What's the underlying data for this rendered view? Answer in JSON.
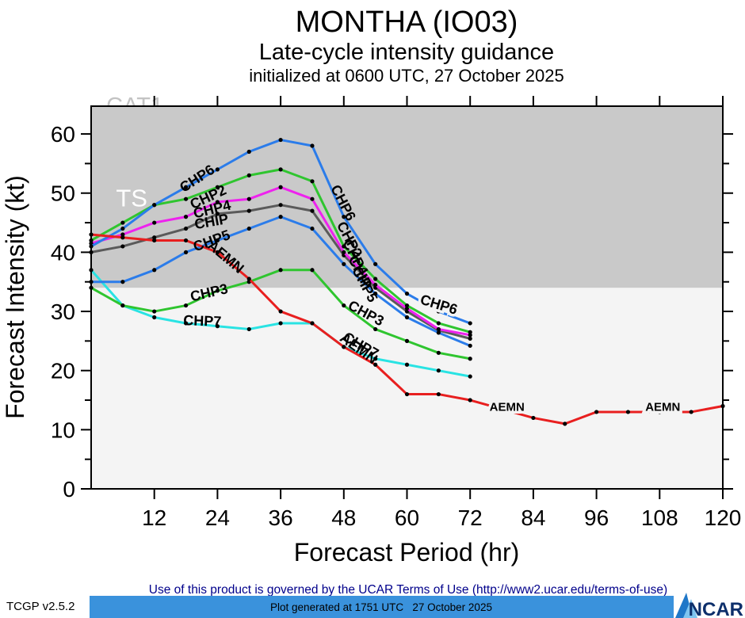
{
  "title": "MONTHA (IO03)",
  "subtitle": "Late-cycle intensity guidance",
  "init_line": "initialized at 0600 UTC, 27 October 2025",
  "footer": {
    "terms": "Use of this product is governed by the UCAR Terms of Use (http://www2.ucar.edu/terms-of-use)",
    "version": "TCGP v2.5.2",
    "generated": "Plot generated at 1751 UTC   27 October 2025",
    "logo_text": "NCAR",
    "terms_color": "#00008b",
    "bar_color": "#3a92dc",
    "logo_navy": "#0d2f6b"
  },
  "chart_data": {
    "type": "line",
    "title": "MONTHA (IO03) — Late-cycle intensity guidance",
    "xlabel": "Forecast Period (hr)",
    "ylabel": "Forecast Intensity (kt)",
    "xlim": [
      0,
      120
    ],
    "ylim": [
      0,
      64.7
    ],
    "xticks": [
      12,
      24,
      36,
      48,
      60,
      72,
      84,
      96,
      108,
      120
    ],
    "yticks": [
      0,
      10,
      20,
      30,
      40,
      50,
      60
    ],
    "yticks_minor": [
      5,
      15,
      25,
      35,
      45,
      55
    ],
    "grid": false,
    "legend_position": "inline-labels",
    "bands": [
      {
        "name": "below-TS",
        "from": 0,
        "to": 34,
        "color": "#f4f4f4"
      },
      {
        "name": "TS",
        "from": 34,
        "to": 64.7,
        "color": "#c9c9c9"
      }
    ],
    "band_labels": [
      {
        "text": "CAT1",
        "t": 8.3,
        "kt": 64.85,
        "color": "#c3c3c3",
        "size": 29,
        "behind_bands": true
      },
      {
        "text": "TS",
        "t": 7.7,
        "kt": 49.2,
        "color": "#ffffff",
        "size": 31,
        "behind_bands": false
      }
    ],
    "series": [
      {
        "name": "CHP7",
        "color": "#29e3e3",
        "x": [
          0,
          6,
          12,
          18,
          24,
          30,
          36,
          42,
          48,
          54,
          60,
          66,
          72
        ],
        "values": [
          37,
          31,
          29,
          28,
          27.5,
          27,
          28,
          28,
          24,
          22,
          21,
          20,
          19
        ]
      },
      {
        "name": "CHP3",
        "color": "#2fc52f",
        "x": [
          0,
          6,
          12,
          18,
          24,
          30,
          36,
          42,
          48,
          54,
          60,
          66,
          72
        ],
        "values": [
          34,
          31,
          30,
          31,
          33.5,
          35,
          37,
          37,
          31,
          27,
          25,
          23,
          22
        ]
      },
      {
        "name": "CHIP",
        "color": "#5a5a5a",
        "x": [
          0,
          6,
          12,
          18,
          24,
          30,
          36,
          42,
          48,
          54,
          60,
          66,
          72
        ],
        "values": [
          40,
          41,
          42.5,
          44,
          46.5,
          47,
          48,
          47,
          39.5,
          34,
          30,
          26.8,
          25.4
        ]
      },
      {
        "name": "CHP4",
        "color": "#ee22ee",
        "x": [
          0,
          6,
          12,
          18,
          24,
          30,
          36,
          42,
          48,
          54,
          60,
          66,
          72
        ],
        "values": [
          41.5,
          43,
          45,
          46,
          48.5,
          49,
          51,
          49,
          40,
          34.5,
          30.5,
          27,
          26
        ]
      },
      {
        "name": "CHP2",
        "color": "#2fc52f",
        "x": [
          0,
          6,
          12,
          18,
          24,
          30,
          36,
          42,
          48,
          54,
          60,
          66,
          72
        ],
        "values": [
          42,
          45,
          48,
          49,
          51,
          53,
          54,
          52,
          41,
          35.5,
          31,
          28,
          26.5
        ]
      },
      {
        "name": "CHP5",
        "color": "#2b7cea",
        "x": [
          0,
          6,
          12,
          18,
          24,
          30,
          36,
          42,
          48,
          54,
          60,
          66,
          72
        ],
        "values": [
          35,
          35,
          37,
          40,
          42,
          44,
          46,
          44,
          38,
          33,
          29,
          26.4,
          24.2
        ]
      },
      {
        "name": "CHP6",
        "color": "#2b7cea",
        "x": [
          0,
          6,
          12,
          18,
          24,
          30,
          36,
          42,
          48,
          54,
          60,
          66,
          72
        ],
        "values": [
          41,
          44,
          48,
          51,
          54,
          57,
          59,
          58,
          46,
          38,
          33,
          30,
          28
        ]
      },
      {
        "name": "AEMN",
        "color": "#e81f1f",
        "x": [
          0,
          6,
          12,
          18,
          24,
          30,
          36,
          42,
          48,
          54,
          60,
          66,
          72,
          78,
          84,
          90,
          96,
          102,
          108,
          114,
          120
        ],
        "values": [
          43,
          42.5,
          42,
          42,
          40,
          35.5,
          30,
          28,
          24,
          21,
          16,
          16,
          15,
          13.5,
          12,
          11,
          13,
          13,
          13,
          13,
          14
        ]
      }
    ],
    "annotations": [
      {
        "text": "CHP6",
        "t": 20.6,
        "kt": 51.8,
        "rot": -33,
        "size": 18,
        "halo": false
      },
      {
        "text": "CHP2",
        "t": 22.6,
        "kt": 48.6,
        "rot": -25,
        "size": 18,
        "halo": false
      },
      {
        "text": "CHP4",
        "t": 23.2,
        "kt": 46.5,
        "rot": -14,
        "size": 18,
        "halo": false
      },
      {
        "text": "CHIP",
        "t": 23.0,
        "kt": 44.4,
        "rot": -10,
        "size": 18,
        "halo": false
      },
      {
        "text": "CHP5",
        "t": 23.2,
        "kt": 41.2,
        "rot": -20,
        "size": 18,
        "halo": false
      },
      {
        "text": "AEMN",
        "t": 25.0,
        "kt": 38.6,
        "rot": 40,
        "size": 18,
        "halo": false
      },
      {
        "text": "CHP3",
        "t": 22.6,
        "kt": 32.4,
        "rot": -13,
        "size": 18,
        "halo": false
      },
      {
        "text": "CHP7",
        "t": 21.1,
        "kt": 27.6,
        "rot": 2,
        "size": 18,
        "halo": false
      },
      {
        "text": "CHP6",
        "t": 47.1,
        "kt": 48.0,
        "rot": 63,
        "size": 18,
        "halo": false
      },
      {
        "text": "CHP2",
        "t": 48.3,
        "kt": 41.8,
        "rot": 62,
        "size": 18,
        "halo": false
      },
      {
        "text": "CHP4",
        "t": 49.4,
        "kt": 38.8,
        "rot": 62,
        "size": 18,
        "halo": false
      },
      {
        "text": "CHIP",
        "t": 50.3,
        "kt": 36.3,
        "rot": 62,
        "size": 18,
        "halo": false
      },
      {
        "text": "CHP5",
        "t": 51.2,
        "kt": 34.2,
        "rot": 62,
        "size": 18,
        "halo": false
      },
      {
        "text": "CHP6",
        "t": 65.8,
        "kt": 30.4,
        "rot": 17,
        "size": 18,
        "halo": true
      },
      {
        "text": "CHP3",
        "t": 51.8,
        "kt": 29.0,
        "rot": 28,
        "size": 18,
        "halo": false
      },
      {
        "text": "CHP7",
        "t": 50.8,
        "kt": 23.6,
        "rot": 30,
        "size": 18,
        "halo": false
      },
      {
        "text": "AEMN",
        "t": 50.3,
        "kt": 23.1,
        "rot": 36,
        "size": 18,
        "halo": false
      },
      {
        "text": "AEMN",
        "t": 79.0,
        "kt": 13.2,
        "rot": 0,
        "size": 15,
        "halo": true
      },
      {
        "text": "AEMN",
        "t": 108.6,
        "kt": 13.2,
        "rot": 0,
        "size": 15,
        "halo": true
      }
    ]
  }
}
